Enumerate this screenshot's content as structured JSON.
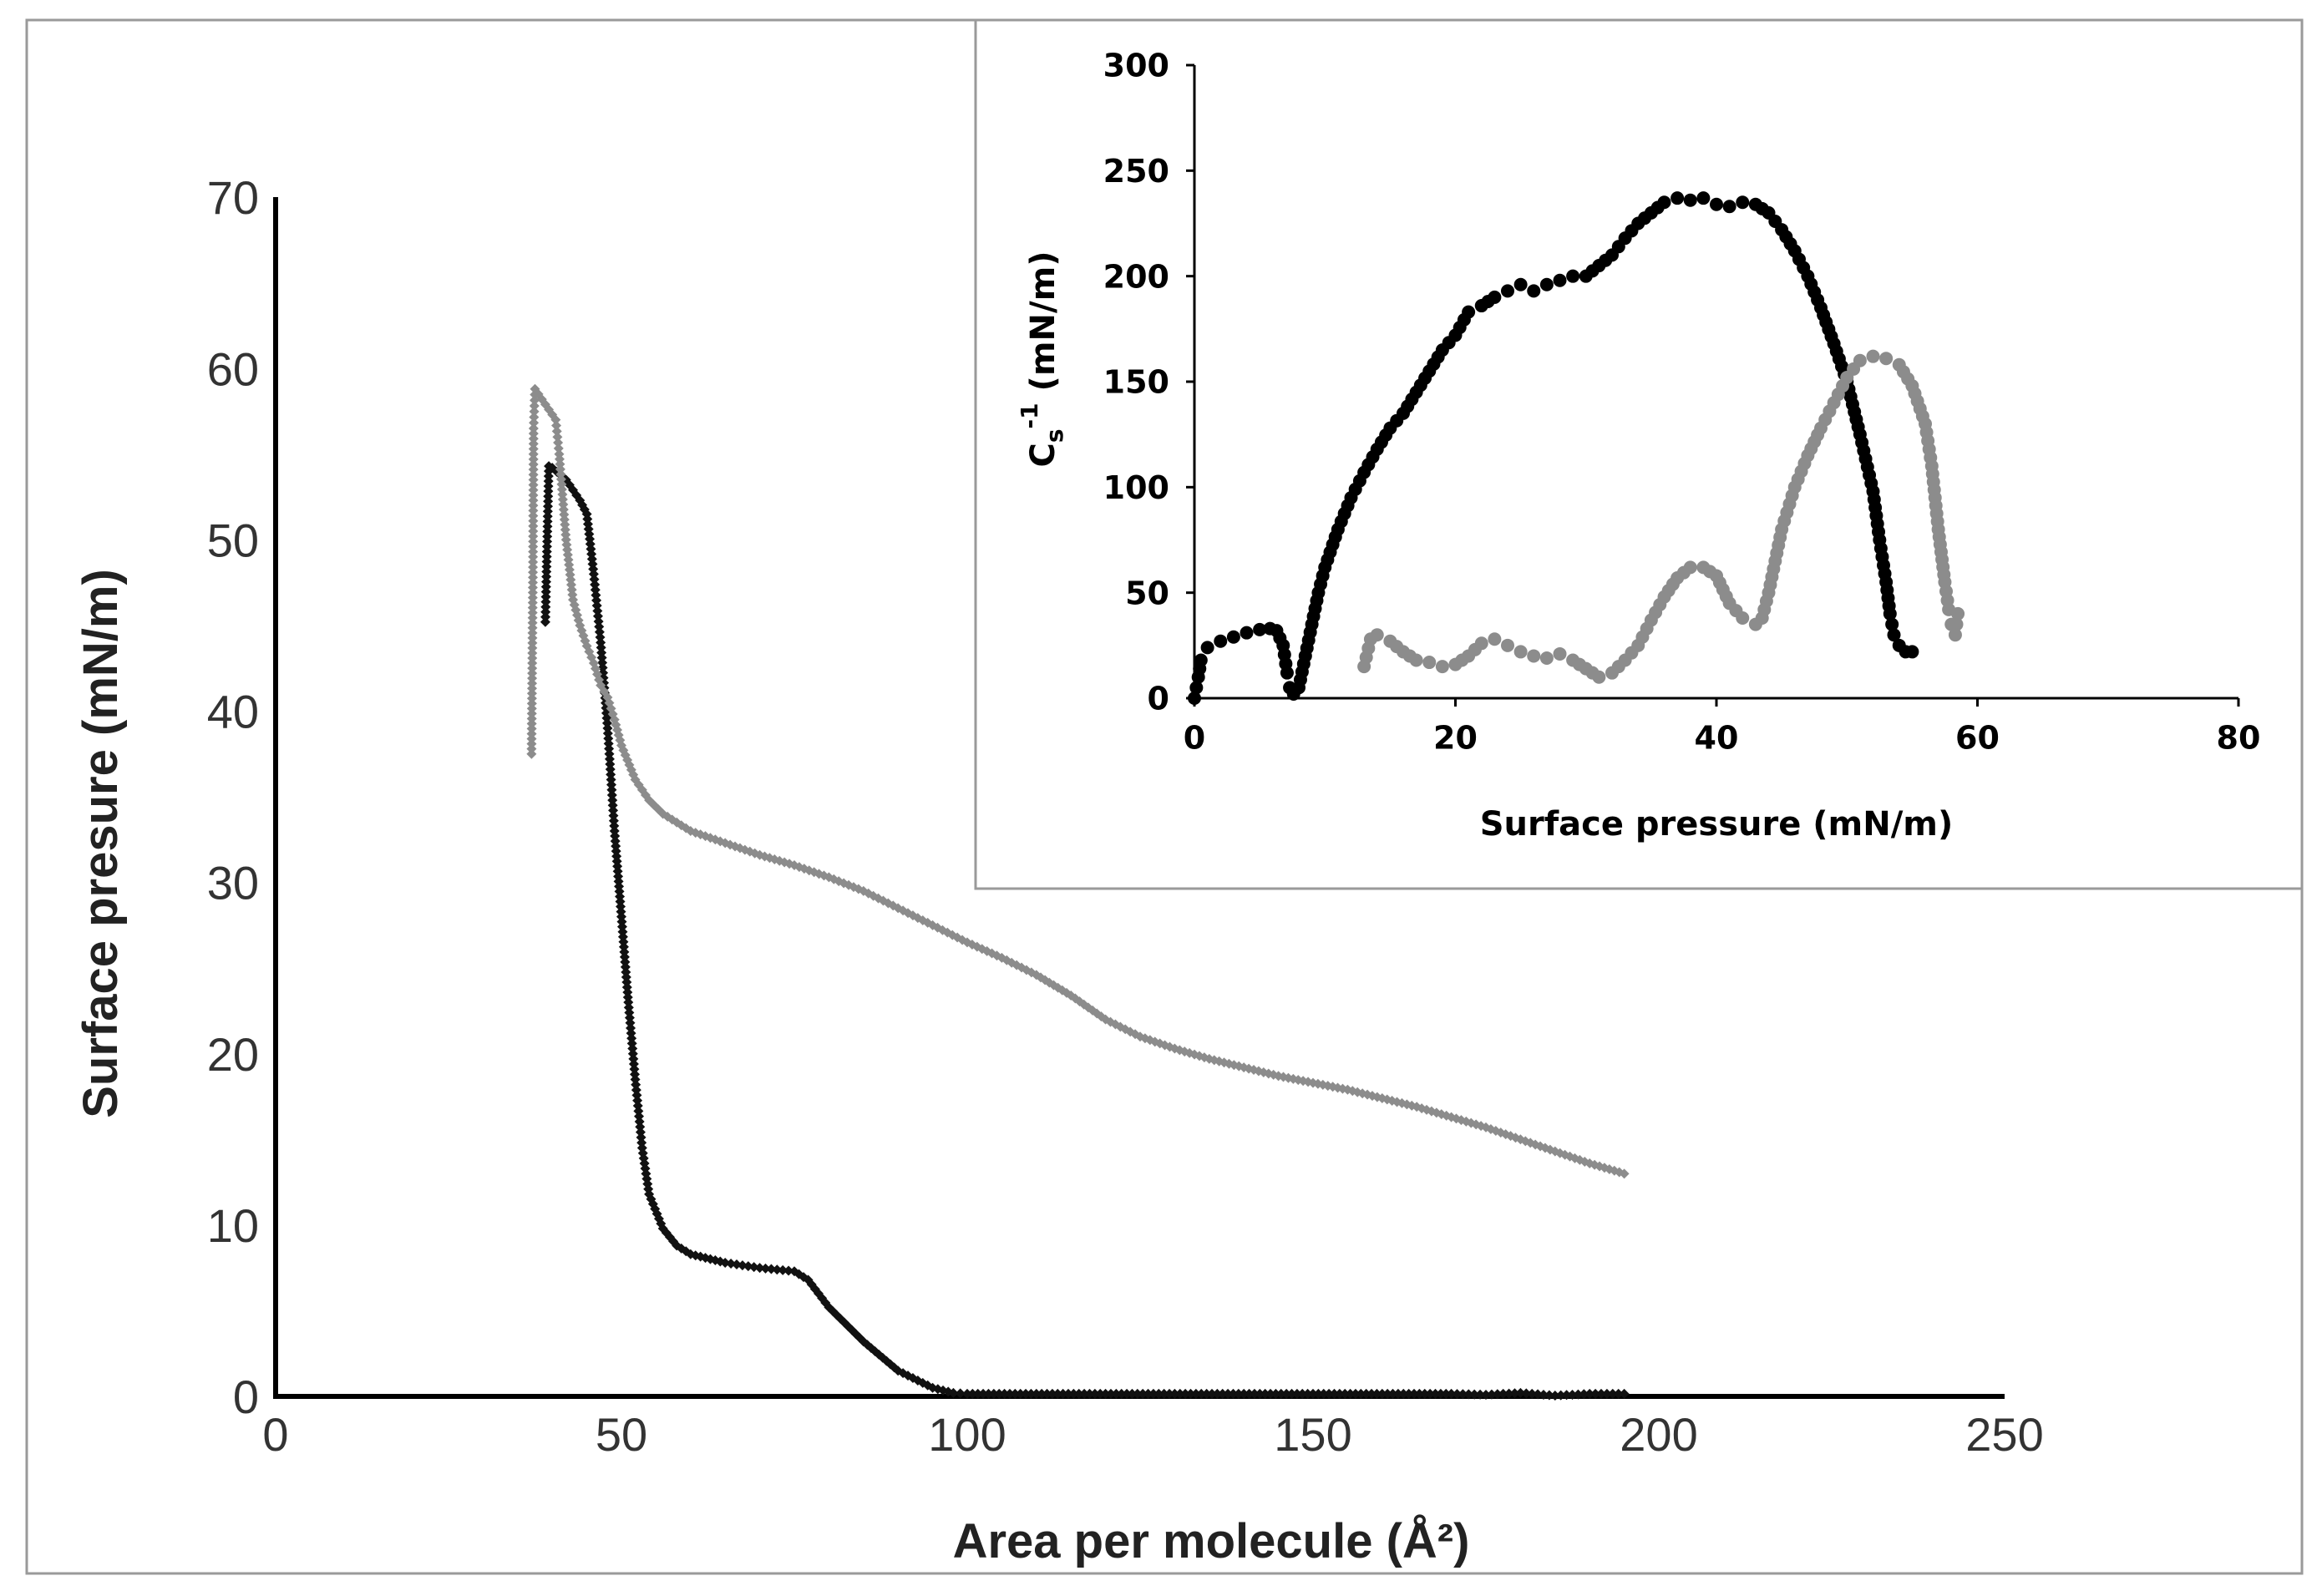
{
  "chart_data": [
    {
      "id": "main",
      "type": "scatter",
      "xlabel": "Area per molecule (Å²)",
      "ylabel": "Surface presure (mN/m)",
      "xlim": [
        0,
        250
      ],
      "ylim": [
        0,
        70
      ],
      "xticks": [
        "0",
        "50",
        "100",
        "150",
        "200",
        "250"
      ],
      "yticks": [
        "0",
        "10",
        "20",
        "30",
        "40",
        "50",
        "60",
        "70"
      ],
      "grid": false,
      "legend": "none",
      "series": [
        {
          "name": "black-isotherm",
          "color": "#111111",
          "points": [
            [
              39,
              45.2
            ],
            [
              39.5,
              54.3
            ],
            [
              40,
              54.2
            ],
            [
              42,
              53.5
            ],
            [
              44,
              52.3
            ],
            [
              45,
              51.5
            ],
            [
              46,
              48
            ],
            [
              47,
              44
            ],
            [
              48,
              39
            ],
            [
              49,
              33
            ],
            [
              50,
              28
            ],
            [
              51,
              23
            ],
            [
              52,
              18.5
            ],
            [
              53,
              14.5
            ],
            [
              54,
              11.8
            ],
            [
              56,
              9.8
            ],
            [
              58,
              8.8
            ],
            [
              60,
              8.3
            ],
            [
              65,
              7.8
            ],
            [
              70,
              7.5
            ],
            [
              75,
              7.3
            ],
            [
              77,
              6.8
            ],
            [
              80,
              5.2
            ],
            [
              85,
              3.2
            ],
            [
              90,
              1.5
            ],
            [
              95,
              0.5
            ],
            [
              98,
              0.2
            ],
            [
              100,
              0.15
            ],
            [
              110,
              0.15
            ],
            [
              120,
              0.15
            ],
            [
              130,
              0.15
            ],
            [
              140,
              0.15
            ],
            [
              150,
              0.15
            ],
            [
              160,
              0.15
            ],
            [
              170,
              0.15
            ],
            [
              175,
              0.1
            ],
            [
              180,
              0.2
            ],
            [
              185,
              0.05
            ],
            [
              190,
              0.15
            ],
            [
              195,
              0.15
            ]
          ]
        },
        {
          "name": "grey-isotherm",
          "color": "#8c8c8c",
          "points": [
            [
              37,
              37.5
            ],
            [
              37.2,
              47.8
            ],
            [
              37.3,
              56.5
            ],
            [
              37.5,
              58.8
            ],
            [
              38.5,
              58.2
            ],
            [
              39.5,
              57.6
            ],
            [
              40.5,
              57
            ],
            [
              41,
              55
            ],
            [
              42,
              50
            ],
            [
              43,
              46.5
            ],
            [
              44,
              45
            ],
            [
              45,
              43.8
            ],
            [
              46,
              42.8
            ],
            [
              47,
              41.5
            ],
            [
              48,
              40.8
            ],
            [
              49,
              39.5
            ],
            [
              50,
              38
            ],
            [
              52,
              36
            ],
            [
              54,
              34.8
            ],
            [
              56,
              34
            ],
            [
              60,
              33
            ],
            [
              65,
              32.3
            ],
            [
              70,
              31.6
            ],
            [
              75,
              31
            ],
            [
              80,
              30.3
            ],
            [
              85,
              29.5
            ],
            [
              90,
              28.5
            ],
            [
              95,
              27.5
            ],
            [
              100,
              26.5
            ],
            [
              105,
              25.6
            ],
            [
              110,
              24.6
            ],
            [
              115,
              23.4
            ],
            [
              120,
              22
            ],
            [
              125,
              21
            ],
            [
              130,
              20.3
            ],
            [
              135,
              19.7
            ],
            [
              140,
              19.2
            ],
            [
              145,
              18.7
            ],
            [
              150,
              18.3
            ],
            [
              155,
              17.9
            ],
            [
              160,
              17.4
            ],
            [
              165,
              16.9
            ],
            [
              170,
              16.3
            ],
            [
              175,
              15.7
            ],
            [
              180,
              15
            ],
            [
              185,
              14.3
            ],
            [
              190,
              13.6
            ],
            [
              195,
              13
            ]
          ]
        }
      ]
    },
    {
      "id": "inset",
      "type": "scatter",
      "xlabel": "Surface pressure (mN/m)",
      "ylabel_main": "C",
      "ylabel_sub": "s",
      "ylabel_sup": "-1",
      "ylabel_rest": " (mN/m)",
      "xlim": [
        0,
        80
      ],
      "ylim": [
        0,
        300
      ],
      "xticks": [
        "0",
        "20",
        "40",
        "60",
        "80"
      ],
      "yticks": [
        "0",
        "50",
        "100",
        "150",
        "200",
        "250",
        "300"
      ],
      "grid": false,
      "legend": "none",
      "series": [
        {
          "name": "black-compressibility",
          "color": "#000000",
          "points": [
            [
              0,
              0
            ],
            [
              0.3,
              10
            ],
            [
              0.5,
              18
            ],
            [
              1,
              24
            ],
            [
              2,
              27
            ],
            [
              3,
              29
            ],
            [
              4,
              31
            ],
            [
              5,
              32.5
            ],
            [
              5.8,
              33
            ],
            [
              6.3,
              32
            ],
            [
              6.8,
              25
            ],
            [
              7.1,
              12
            ],
            [
              7.3,
              5
            ],
            [
              7.6,
              2
            ],
            [
              8,
              5
            ],
            [
              8.5,
              20
            ],
            [
              9,
              35
            ],
            [
              9.5,
              50
            ],
            [
              10,
              62
            ],
            [
              11,
              80
            ],
            [
              12,
              95
            ],
            [
              13,
              107
            ],
            [
              14,
              118
            ],
            [
              15,
              128
            ],
            [
              16,
              135
            ],
            [
              17,
              145
            ],
            [
              18,
              155
            ],
            [
              19,
              165
            ],
            [
              20,
              172
            ],
            [
              21,
              183
            ],
            [
              22,
              186
            ],
            [
              23,
              190
            ],
            [
              24,
              193
            ],
            [
              25,
              196
            ],
            [
              26,
              193
            ],
            [
              27,
              196
            ],
            [
              28,
              198
            ],
            [
              29,
              200
            ],
            [
              30,
              200
            ],
            [
              31,
              205
            ],
            [
              32,
              210
            ],
            [
              33,
              218
            ],
            [
              34,
              225
            ],
            [
              35,
              230
            ],
            [
              36,
              235
            ],
            [
              37,
              237
            ],
            [
              38,
              236
            ],
            [
              39,
              237
            ],
            [
              40,
              234
            ],
            [
              41,
              233
            ],
            [
              42,
              235
            ],
            [
              43,
              234
            ],
            [
              44,
              230
            ],
            [
              45,
              222
            ],
            [
              46,
              212
            ],
            [
              47,
              200
            ],
            [
              48,
              185
            ],
            [
              49,
              168
            ],
            [
              50,
              150
            ],
            [
              51,
              125
            ],
            [
              52,
              98
            ],
            [
              52.5,
              75
            ],
            [
              53,
              55
            ],
            [
              53.3,
              40
            ],
            [
              53.6,
              30
            ],
            [
              54,
              25
            ],
            [
              54.5,
              22
            ],
            [
              55,
              22
            ]
          ]
        },
        {
          "name": "grey-compressibility",
          "color": "#8c8c8c",
          "points": [
            [
              13,
              15
            ],
            [
              13.5,
              28
            ],
            [
              14,
              30
            ],
            [
              15,
              27
            ],
            [
              16,
              22
            ],
            [
              17,
              18
            ],
            [
              18,
              17
            ],
            [
              19,
              15
            ],
            [
              20,
              16
            ],
            [
              21,
              20
            ],
            [
              22,
              26
            ],
            [
              23,
              28
            ],
            [
              24,
              25
            ],
            [
              25,
              22
            ],
            [
              26,
              20
            ],
            [
              27,
              19
            ],
            [
              28,
              21
            ],
            [
              29,
              18
            ],
            [
              30,
              14
            ],
            [
              31,
              10
            ],
            [
              32,
              12
            ],
            [
              33,
              18
            ],
            [
              34,
              25
            ],
            [
              35,
              37
            ],
            [
              36,
              48
            ],
            [
              37,
              57
            ],
            [
              38,
              62
            ],
            [
              39,
              62
            ],
            [
              40,
              58
            ],
            [
              41,
              45
            ],
            [
              42,
              38
            ],
            [
              43,
              35
            ],
            [
              43.5,
              38
            ],
            [
              44,
              50
            ],
            [
              45,
              80
            ],
            [
              46,
              100
            ],
            [
              47,
              115
            ],
            [
              48,
              128
            ],
            [
              49,
              140
            ],
            [
              50,
              152
            ],
            [
              51,
              160
            ],
            [
              52,
              162
            ],
            [
              53,
              161
            ],
            [
              54,
              158
            ],
            [
              55,
              148
            ],
            [
              56,
              130
            ],
            [
              56.5,
              110
            ],
            [
              57,
              80
            ],
            [
              57.5,
              55
            ],
            [
              57.8,
              42
            ],
            [
              58,
              35
            ],
            [
              58.3,
              30
            ],
            [
              58.5,
              40
            ]
          ]
        }
      ]
    }
  ]
}
